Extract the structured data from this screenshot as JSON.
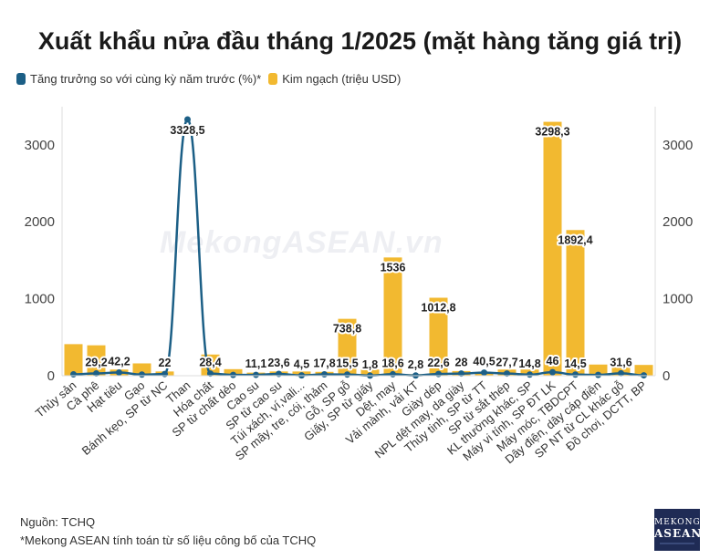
{
  "title": "Xuất khẩu nửa đầu tháng 1/2025 (mặt hàng tăng giá trị)",
  "legend": {
    "line": "Tăng trưởng so với cùng kỳ năm trước (%)*",
    "bar": "Kim ngạch (triệu USD)"
  },
  "source": "Nguồn: TCHQ",
  "note": "*Mekong ASEAN tính toán từ số liệu công bố của TCHQ",
  "watermark": "MekongASEAN.vn",
  "logo": {
    "line1": "MEKONG",
    "line2": "ASEAN"
  },
  "colors": {
    "bar": "#f2b930",
    "line": "#1c5f86",
    "grid": "#e2e2e2"
  },
  "chart_data": {
    "type": "bar",
    "categories": [
      "Thủy sản",
      "Cà phê",
      "Hạt tiêu",
      "Gạo",
      "Bánh kẹo, SP từ NC",
      "Than",
      "Hóa chất",
      "SP từ chất dẻo",
      "Cao su",
      "SP từ cao su",
      "Túi xách, ví,vali...",
      "SP mây, tre, cói, thảm",
      "Gỗ, SP gỗ",
      "Giấy, SP từ giấy",
      "Dệt, may",
      "Vải mành, vải KT",
      "Giày dép",
      "NPL dệt may, da giày",
      "Thủy tinh, SP từ TT",
      "SP từ sắt thép",
      "KL thường khác, SP",
      "Máy vi tính, SP ĐT LK",
      "Máy móc, TBDCPT",
      "Dây điện, dây cáp điện",
      "SP NT từ CL khác gỗ",
      "Đồ chơi, DCTT, BP"
    ],
    "series": [
      {
        "type": "bar",
        "axis": "left",
        "values": [
          410,
          395,
          80,
          160,
          55,
          5,
          275,
          85,
          40,
          55,
          55,
          50,
          738.8,
          80,
          1536,
          20,
          1012.8,
          60,
          35,
          80,
          80,
          3298.3,
          1892.4,
          145,
          110,
          140
        ]
      },
      {
        "type": "line",
        "axis": "right",
        "values": [
          18,
          29.2,
          42.2,
          15,
          22,
          3328.5,
          28.4,
          10,
          11.1,
          23.6,
          4.5,
          17.8,
          15.5,
          1.8,
          18.6,
          2.8,
          22.6,
          28,
          40.5,
          27.7,
          14.8,
          46,
          14.5,
          10,
          31.6,
          5
        ]
      }
    ],
    "bar_labels": [
      null,
      null,
      null,
      null,
      null,
      null,
      null,
      null,
      null,
      null,
      null,
      null,
      "738,8",
      null,
      "1536",
      null,
      "1012,8",
      null,
      null,
      null,
      null,
      "3298,3",
      "1892,4",
      null,
      null,
      null
    ],
    "line_labels": [
      null,
      "29,2",
      "42,2",
      null,
      "22",
      "3328,5",
      "28,4",
      null,
      "11,1",
      "23,6",
      "4,5",
      "17,8",
      "15,5",
      "1,8",
      "18,6",
      "2,8",
      "22,6",
      "28",
      "40,5",
      "27,7",
      "14,8",
      "46",
      "14,5",
      null,
      "31,6",
      null
    ],
    "left_axis": {
      "ticks": [
        "0",
        "1000",
        "2000",
        "3000"
      ],
      "range": [
        0,
        3400
      ]
    },
    "right_axis": {
      "ticks": [
        "0",
        "1000",
        "2000",
        "3000"
      ],
      "range": [
        0,
        3400
      ]
    },
    "grid": false
  }
}
